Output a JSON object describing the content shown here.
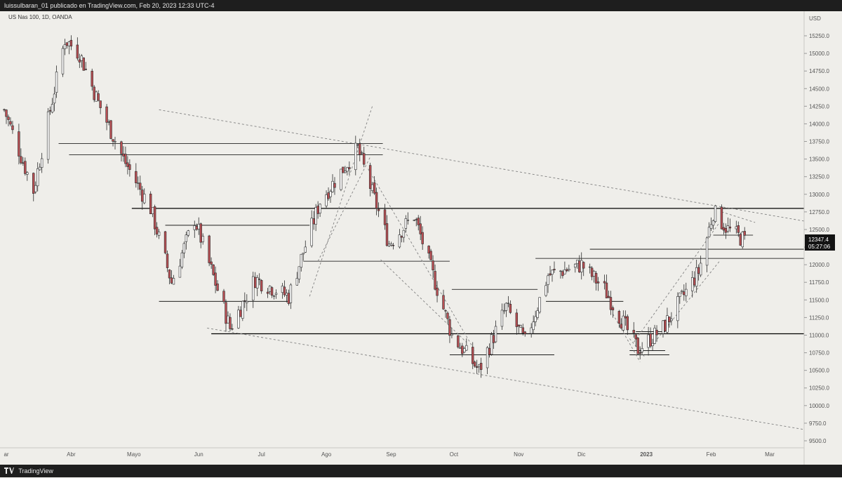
{
  "header": {
    "publish_text": "luissulbaran_01 publicado en TradingView.com, Feb 20, 2023 12:33 UTC-4"
  },
  "symbol": {
    "title": "US Nas 100, 1D, OANDA"
  },
  "axis": {
    "currency": "USD"
  },
  "price_badge": {
    "price": "12347.4",
    "countdown": "05:27:06"
  },
  "footer": {
    "brand": "TradingView"
  },
  "colors": {
    "bull": "#ffffff",
    "bear": "#b94f54",
    "outline": "#2b2b2b",
    "line": "#000000",
    "dashed": "#808080",
    "background": "#efeeea",
    "bar": "#1e1e1e"
  },
  "chart_data": {
    "type": "candlestick",
    "title": "US Nas 100, 1D, OANDA",
    "ylabel": "USD",
    "ylim": [
      9400,
      15450
    ],
    "y_ticks": [
      9500,
      9750,
      10000,
      10250,
      10500,
      10750,
      11000,
      11250,
      11500,
      11750,
      12000,
      12250,
      12500,
      12750,
      13000,
      13250,
      13500,
      13750,
      14000,
      14250,
      14500,
      14750,
      15000,
      15250
    ],
    "x_labels": [
      "ar",
      "Abr",
      "Mayo",
      "Jun",
      "Jul",
      "Ago",
      "Sep",
      "Oct",
      "Nov",
      "Dic",
      "2023",
      "Feb",
      "Mar"
    ],
    "x_label_dates": [
      "2022-03-01",
      "2022-04-01",
      "2022-05-01",
      "2022-06-01",
      "2022-07-01",
      "2022-08-01",
      "2022-09-01",
      "2022-10-01",
      "2022-11-01",
      "2022-12-01",
      "2023-01-01",
      "2023-02-01",
      "2023-03-01"
    ],
    "waypoints": [
      [
        "2022-02-28",
        14200
      ],
      [
        "2022-03-14",
        13050
      ],
      [
        "2022-03-29",
        15200
      ],
      [
        "2022-04-05",
        15000
      ],
      [
        "2022-04-14",
        14300
      ],
      [
        "2022-04-26",
        13500
      ],
      [
        "2022-05-09",
        12800
      ],
      [
        "2022-05-19",
        11750
      ],
      [
        "2022-05-30",
        12650
      ],
      [
        "2022-06-16",
        11100
      ],
      [
        "2022-06-28",
        11800
      ],
      [
        "2022-07-14",
        11550
      ],
      [
        "2022-07-29",
        12900
      ],
      [
        "2022-08-16",
        13650
      ],
      [
        "2022-08-31",
        12300
      ],
      [
        "2022-09-12",
        12700
      ],
      [
        "2022-09-30",
        11000
      ],
      [
        "2022-10-13",
        10500
      ],
      [
        "2022-10-26",
        11400
      ],
      [
        "2022-11-04",
        10900
      ],
      [
        "2022-11-15",
        11850
      ],
      [
        "2022-12-01",
        12000
      ],
      [
        "2022-12-12",
        11650
      ],
      [
        "2022-12-28",
        10800
      ],
      [
        "2023-01-09",
        11100
      ],
      [
        "2023-01-26",
        11900
      ],
      [
        "2023-02-02",
        12750
      ],
      [
        "2023-02-09",
        12500
      ],
      [
        "2023-02-17",
        12347
      ]
    ],
    "horizontal_levels": [
      {
        "y": 13720,
        "from": "2022-03-26",
        "to": "2022-08-28"
      },
      {
        "y": 13560,
        "from": "2022-03-31",
        "to": "2022-08-28"
      },
      {
        "y": 12800,
        "from": "2022-04-30",
        "to": "2023-03-18"
      },
      {
        "y": 12560,
        "from": "2022-05-16",
        "to": "2022-07-24"
      },
      {
        "y": 12050,
        "from": "2022-07-21",
        "to": "2022-09-29"
      },
      {
        "y": 11480,
        "from": "2022-05-13",
        "to": "2022-07-14"
      },
      {
        "y": 12800,
        "from": "2022-08-03",
        "to": "2022-09-17"
      },
      {
        "y": 11650,
        "from": "2022-09-30",
        "to": "2022-11-10"
      },
      {
        "y": 10720,
        "from": "2022-09-29",
        "to": "2022-11-18"
      },
      {
        "y": 12090,
        "from": "2022-11-09",
        "to": "2023-03-18"
      },
      {
        "y": 12220,
        "from": "2022-12-05",
        "to": "2023-03-18"
      },
      {
        "y": 11480,
        "from": "2022-11-14",
        "to": "2022-12-21"
      },
      {
        "y": 11050,
        "from": "2022-12-27",
        "to": "2023-01-10"
      },
      {
        "y": 10780,
        "from": "2022-12-24",
        "to": "2023-01-10"
      },
      {
        "y": 10720,
        "from": "2022-12-24",
        "to": "2023-01-12"
      },
      {
        "y": 12420,
        "from": "2023-02-02",
        "to": "2023-02-21"
      },
      {
        "y": 11020,
        "from": "2022-06-07",
        "to": "2023-03-18"
      }
    ],
    "dashed_lines": [
      {
        "from": [
          "2022-05-13",
          14200
        ],
        "to": [
          "2023-03-19",
          12620
        ]
      },
      {
        "from": [
          "2022-06-05",
          11100
        ],
        "to": [
          "2023-03-19",
          9660
        ]
      },
      {
        "from": [
          "2022-07-24",
          11550
        ],
        "to": [
          "2022-08-23",
          14250
        ]
      },
      {
        "from": [
          "2022-07-28",
          12050
        ],
        "to": [
          "2022-08-22",
          13530
        ]
      },
      {
        "from": [
          "2022-08-21",
          13360
        ],
        "to": [
          "2022-10-11",
          10780
        ]
      },
      {
        "from": [
          "2022-08-27",
          12070
        ],
        "to": [
          "2022-10-07",
          10900
        ]
      },
      {
        "from": [
          "2022-12-16",
          11300
        ],
        "to": [
          "2022-12-29",
          10620
        ]
      },
      {
        "from": [
          "2022-12-24",
          10950
        ],
        "to": [
          "2022-12-31",
          10700
        ]
      },
      {
        "from": [
          "2022-12-26",
          10900
        ],
        "to": [
          "2023-02-05",
          12600
        ]
      },
      {
        "from": [
          "2023-01-05",
          10900
        ],
        "to": [
          "2023-02-05",
          12050
        ]
      },
      {
        "from": [
          "2023-02-06",
          12750
        ],
        "to": [
          "2023-02-22",
          12600
        ]
      }
    ]
  }
}
